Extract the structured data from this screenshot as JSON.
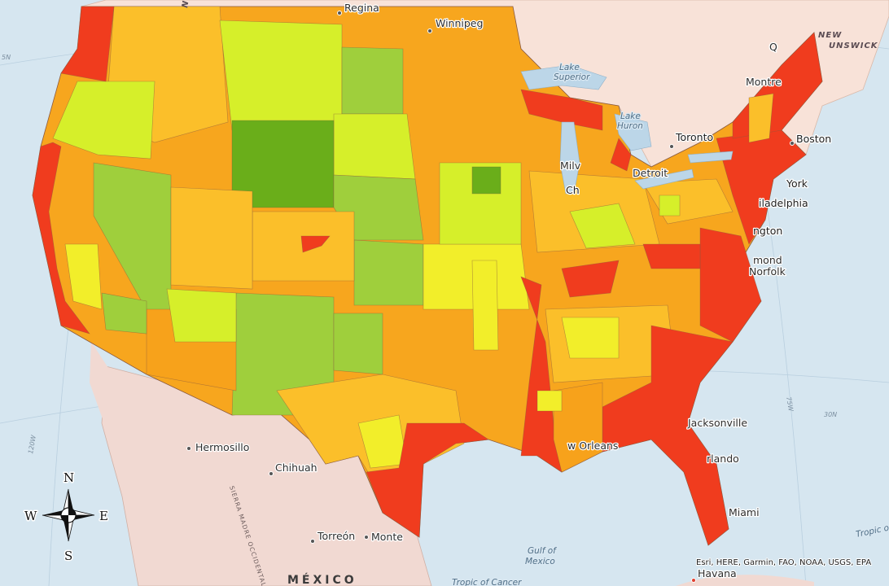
{
  "map": {
    "region_fragment": "NTA",
    "cities": [
      "Regina",
      "Winnipeg",
      "Q",
      "Montre",
      "Toronto",
      "Boston",
      "York",
      "iladelphia",
      "ngton",
      "mond",
      "Norfolk",
      "Detroit",
      "Milv",
      "Ch",
      "Jacksonville",
      "w Orleans",
      "rlando",
      "Miami",
      "Havana",
      "Hermosillo",
      "Chihuah",
      "Torreón",
      "Monte"
    ],
    "water": {
      "lake_superior": [
        "Lake",
        "Superior"
      ],
      "lake_huron": [
        "Lake",
        "Huron"
      ],
      "gulf": [
        "Gulf of",
        "Mexico"
      ],
      "tropic": "Tropic of Cancer",
      "tropic_right": "Tropic o"
    },
    "provinces": [
      "NEW",
      "UNSWICK"
    ],
    "country": "MÉXICO",
    "mountains": "SIERRA MADRE OCCIDENTAL",
    "graticule": [
      "5N",
      "120W",
      "75W",
      "30N"
    ],
    "compass": {
      "n": "N",
      "s": "S",
      "e": "E",
      "w": "W"
    },
    "attribution": "Esri, HERE, Garmin, FAO, NOAA, USGS, EPA"
  }
}
